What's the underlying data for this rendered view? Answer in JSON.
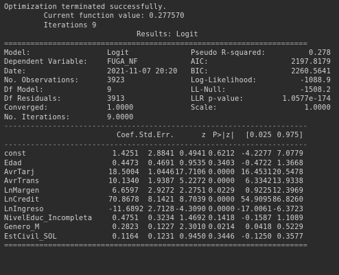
{
  "header": {
    "line1": "Optimization terminated successfully.",
    "line2": "         Current function value: 0.277570",
    "line3": "         Iterations 9",
    "title": "Results: Logit"
  },
  "rules": {
    "double": "=====================================================================",
    "single": "---------------------------------------------------------------------"
  },
  "summary": [
    {
      "l1": "Model:",
      "v1": "Logit",
      "l2": "Pseudo R-squared:",
      "v2": "0.278"
    },
    {
      "l1": "Dependent Variable:",
      "v1": "FUGA_NF",
      "l2": "AIC:",
      "v2": "2197.8179"
    },
    {
      "l1": "Date:",
      "v1": "2021-11-07 20:20",
      "l2": "BIC:",
      "v2": "2260.5641"
    },
    {
      "l1": "No. Observations:",
      "v1": "3923",
      "l2": "Log-Likelihood:",
      "v2": "-1088.9"
    },
    {
      "l1": "Df Model:",
      "v1": "9",
      "l2": "LL-Null:",
      "v2": "-1508.2"
    },
    {
      "l1": "Df Residuals:",
      "v1": "3913",
      "l2": "LLR p-value:",
      "v2": "1.0577e-174"
    },
    {
      "l1": "Converged:",
      "v1": "1.0000",
      "l2": "Scale:",
      "v2": "1.0000"
    },
    {
      "l1": "No. Iterations:",
      "v1": "9.0000",
      "l2": "",
      "v2": ""
    }
  ],
  "coef_header": {
    "name": "",
    "coef": "Coef.",
    "se": "Std.Err.",
    "z": "z",
    "p": "P>|z|",
    "lo": "[0.025",
    "hi": "0.975]"
  },
  "coefficients": [
    {
      "name": "const",
      "coef": "1.4251",
      "se": "2.8841",
      "z": "0.4941",
      "p": "0.6212",
      "lo": "-4.2277",
      "hi": "7.0779"
    },
    {
      "name": "Edad",
      "coef": "0.4473",
      "se": "0.4691",
      "z": "0.9535",
      "p": "0.3403",
      "lo": "-0.4722",
      "hi": "1.3668"
    },
    {
      "name": "AvrTarj",
      "coef": "18.5004",
      "se": "1.0446",
      "z": "17.7106",
      "p": "0.0000",
      "lo": "16.4531",
      "hi": "20.5478"
    },
    {
      "name": "AvrTrans",
      "coef": "10.1340",
      "se": "1.9387",
      "z": "5.2272",
      "p": "0.0000",
      "lo": "6.3342",
      "hi": "13.9338"
    },
    {
      "name": "LnMargen",
      "coef": "6.6597",
      "se": "2.9272",
      "z": "2.2751",
      "p": "0.0229",
      "lo": "0.9225",
      "hi": "12.3969"
    },
    {
      "name": "LnCredit",
      "coef": "70.8678",
      "se": "8.1421",
      "z": "8.7039",
      "p": "0.0000",
      "lo": "54.9095",
      "hi": "86.8260"
    },
    {
      "name": "LnIngreso",
      "coef": "-11.6892",
      "se": "2.7128",
      "z": "-4.3090",
      "p": "0.0000",
      "lo": "-17.0061",
      "hi": "-6.3723"
    },
    {
      "name": "NivelEduc_Incompleta",
      "coef": "0.4751",
      "se": "0.3234",
      "z": "1.4692",
      "p": "0.1418",
      "lo": "-0.1587",
      "hi": "1.1089"
    },
    {
      "name": "Genero_M",
      "coef": "0.2823",
      "se": "0.1227",
      "z": "2.3010",
      "p": "0.0214",
      "lo": "0.0418",
      "hi": "0.5229"
    },
    {
      "name": "EstCivil_SOL",
      "coef": "0.1164",
      "se": "0.1231",
      "z": "0.9450",
      "p": "0.3446",
      "lo": "-0.1250",
      "hi": "0.3577"
    }
  ]
}
